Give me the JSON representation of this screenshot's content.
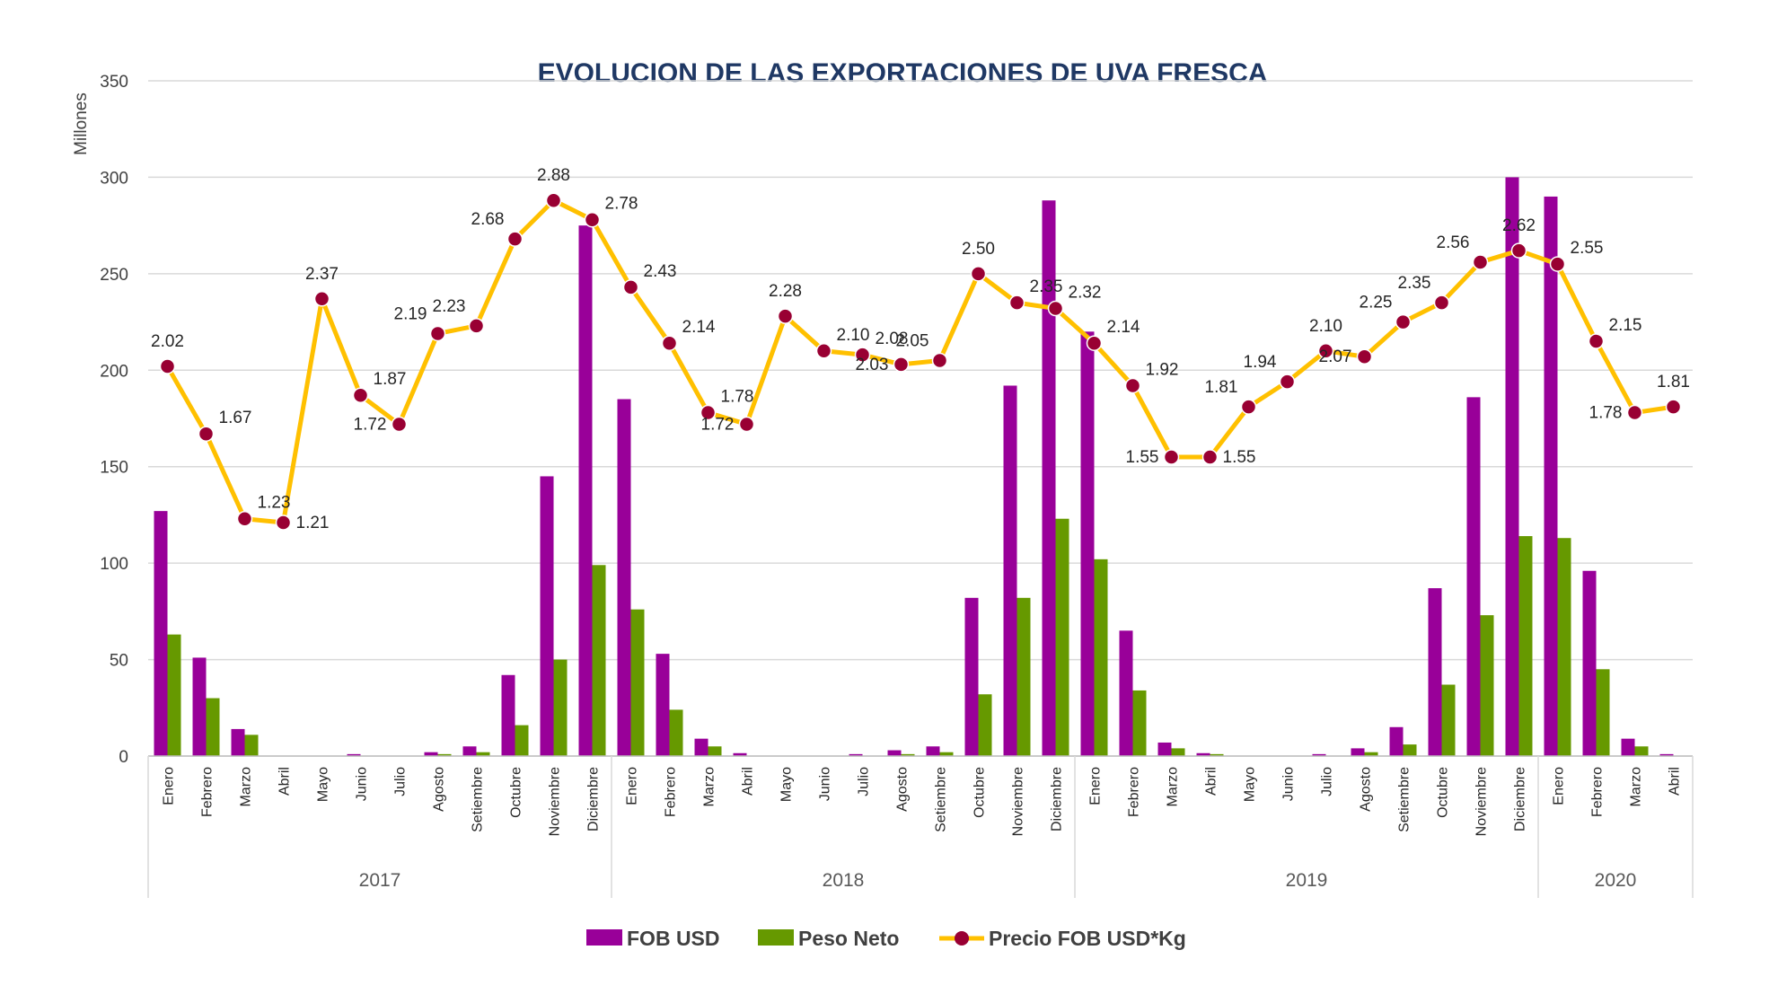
{
  "chart_data": {
    "type": "bar",
    "title": "EVOLUCION DE LAS EXPORTACIONES DE UVA FRESCA",
    "ylabel": "Millones",
    "ylim": [
      0,
      350
    ],
    "yticks": [
      0,
      50,
      100,
      150,
      200,
      250,
      300,
      350
    ],
    "grid": true,
    "legend_position": "bottom",
    "categories": [
      "Enero",
      "Febrero",
      "Marzo",
      "Abril",
      "Mayo",
      "Junio",
      "Julio",
      "Agosto",
      "Setiembre",
      "Octubre",
      "Noviembre",
      "Diciembre",
      "Enero",
      "Febrero",
      "Marzo",
      "Abril",
      "Mayo",
      "Junio",
      "Julio",
      "Agosto",
      "Setiembre",
      "Octubre",
      "Noviembre",
      "Diciembre",
      "Enero",
      "Febrero",
      "Marzo",
      "Abril",
      "Mayo",
      "Junio",
      "Julio",
      "Agosto",
      "Setiembre",
      "Octubre",
      "Noviembre",
      "Diciembre",
      "Enero",
      "Febrero",
      "Marzo",
      "Abril"
    ],
    "years": [
      {
        "label": "2017",
        "start": 0,
        "count": 12
      },
      {
        "label": "2018",
        "start": 12,
        "count": 12
      },
      {
        "label": "2019",
        "start": 24,
        "count": 12
      },
      {
        "label": "2020",
        "start": 36,
        "count": 4
      }
    ],
    "series": [
      {
        "name": "FOB USD",
        "type": "bar",
        "color": "#990099",
        "values": [
          127,
          51,
          14,
          0,
          0,
          1,
          0,
          2,
          5,
          42,
          145,
          275,
          185,
          53,
          9,
          1.5,
          0,
          0,
          1,
          3,
          5,
          82,
          192,
          288,
          220,
          65,
          7,
          1.5,
          0,
          0,
          1,
          4,
          15,
          87,
          186,
          300,
          290,
          96,
          9,
          1
        ]
      },
      {
        "name": "Peso Neto",
        "type": "bar",
        "color": "#669900",
        "values": [
          63,
          30,
          11,
          0,
          0,
          0,
          0,
          1,
          2,
          16,
          50,
          99,
          76,
          24,
          5,
          0,
          0,
          0,
          0,
          1,
          2,
          32,
          82,
          123,
          102,
          34,
          4,
          1,
          0,
          0,
          0,
          2,
          6,
          37,
          73,
          114,
          113,
          45,
          5,
          0
        ]
      },
      {
        "name": "Precio FOB USD*Kg",
        "type": "line",
        "color": "#ffc000",
        "marker_color": "#990033",
        "values": [
          2.02,
          1.67,
          1.23,
          1.21,
          2.37,
          1.87,
          1.72,
          2.19,
          2.23,
          2.68,
          2.88,
          2.78,
          2.43,
          2.14,
          1.78,
          1.72,
          2.28,
          2.1,
          2.08,
          2.03,
          2.05,
          2.5,
          2.35,
          2.32,
          2.14,
          1.92,
          1.55,
          1.55,
          1.81,
          1.94,
          2.1,
          2.07,
          2.25,
          2.35,
          2.56,
          2.62,
          2.55,
          2.15,
          1.78,
          1.81
        ],
        "labels": [
          "2.02",
          "1.67",
          "1.23",
          "1.21",
          "2.37",
          "1.87",
          "1.72",
          "2.19",
          "2.23",
          "2.68",
          "2.88",
          "2.78",
          "2.43",
          "2.14",
          "1.78",
          "1.72",
          "2.28",
          "2.10",
          "2.08",
          "2.03",
          "2.05",
          "2.50",
          "2.35",
          "2.32",
          "2.14",
          "1.92",
          "1.55",
          "1.55",
          "1.81",
          "1.94",
          "2.10",
          "2.07",
          "2.25",
          "2.35",
          "2.56",
          "2.62",
          "2.55",
          "2.15",
          "1.78",
          "1.81"
        ]
      }
    ]
  }
}
